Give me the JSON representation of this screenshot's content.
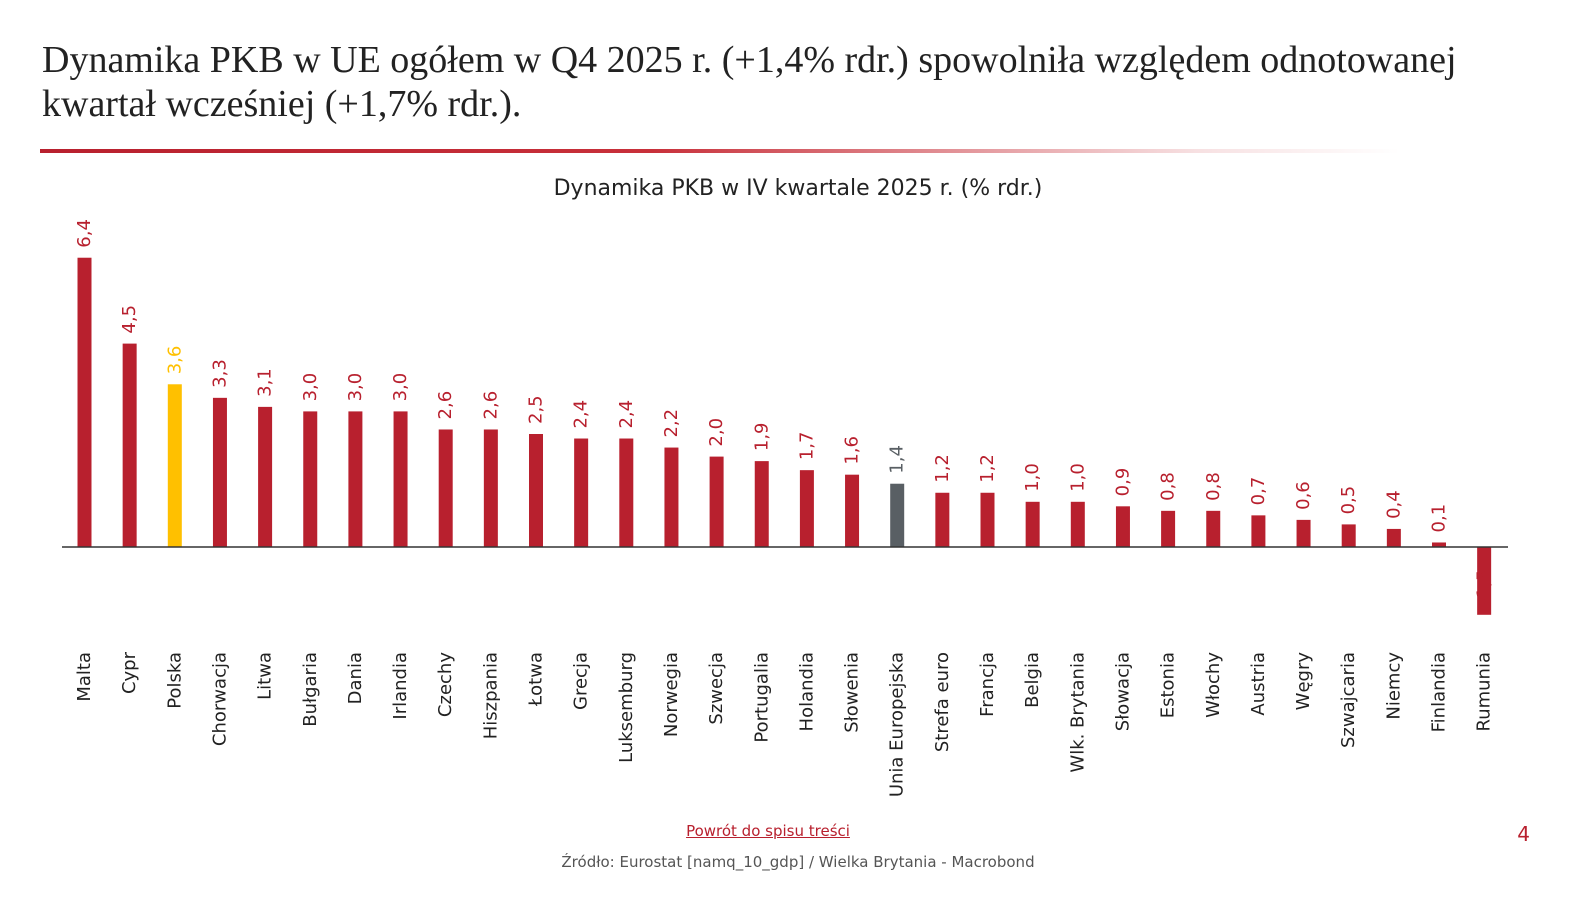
{
  "headline": "Dynamika PKB w UE ogółem w Q4 2025 r. (+1,4% rdr.) spowolniła względem odnotowanej kwartał wcześniej (+1,7% rdr.).",
  "colors": {
    "default_bar": "#b8202e",
    "highlight_poland": "#ffc000",
    "highlight_eu": "#595f64",
    "accent": "#b8202e"
  },
  "chart_data": {
    "type": "bar",
    "title": "Dynamika PKB w IV kwartale 2025 r. (% rdr.)",
    "xlabel": "",
    "ylabel": "",
    "ylim": [
      -1.5,
      6.4
    ],
    "grid": false,
    "categories": [
      "Malta",
      "Cypr",
      "Polska",
      "Chorwacja",
      "Litwa",
      "Bułgaria",
      "Dania",
      "Irlandia",
      "Czechy",
      "Hiszpania",
      "Łotwa",
      "Grecja",
      "Luksemburg",
      "Norwegia",
      "Szwecja",
      "Portugalia",
      "Holandia",
      "Słowenia",
      "Unia Europejska",
      "Strefa euro",
      "Francja",
      "Belgia",
      "Wlk. Brytania",
      "Słowacja",
      "Estonia",
      "Włochy",
      "Austria",
      "Węgry",
      "Szwajcaria",
      "Niemcy",
      "Finlandia",
      "Rumunia"
    ],
    "values": [
      6.4,
      4.5,
      3.6,
      3.3,
      3.1,
      3.0,
      3.0,
      3.0,
      2.6,
      2.6,
      2.5,
      2.4,
      2.4,
      2.2,
      2.0,
      1.9,
      1.7,
      1.6,
      1.4,
      1.2,
      1.2,
      1.0,
      1.0,
      0.9,
      0.8,
      0.8,
      0.7,
      0.6,
      0.5,
      0.4,
      0.1,
      -1.5
    ],
    "labels": [
      "6,4",
      "4,5",
      "3,6",
      "3,3",
      "3,1",
      "3,0",
      "3,0",
      "3,0",
      "2,6",
      "2,6",
      "2,5",
      "2,4",
      "2,4",
      "2,2",
      "2,0",
      "1,9",
      "1,7",
      "1,6",
      "1,4",
      "1,2",
      "1,2",
      "1,0",
      "1,0",
      "0,9",
      "0,8",
      "0,8",
      "0,7",
      "0,6",
      "0,5",
      "0,4",
      "0,1",
      "-1,5"
    ],
    "highlights": {
      "Polska": "highlight_poland",
      "Unia Europejska": "highlight_eu"
    }
  },
  "footer": {
    "back_link": "Powrót do spisu treści",
    "source": "Źródło: Eurostat [namq_10_gdp] / Wielka Brytania - Macrobond",
    "page_number": "4"
  }
}
